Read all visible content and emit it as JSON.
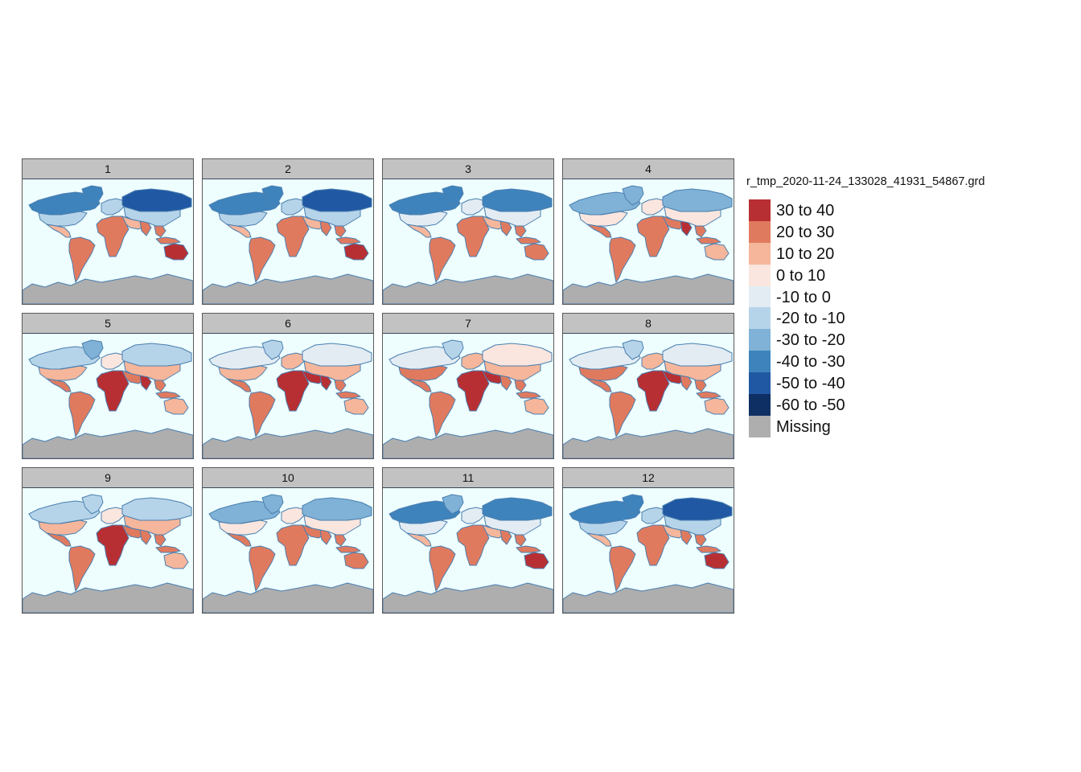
{
  "months": [
    "1",
    "2",
    "3",
    "4",
    "5",
    "6",
    "7",
    "8",
    "9",
    "10",
    "11",
    "12"
  ],
  "legend": {
    "title": "r_tmp_2020-11-24_133028_41931_54867.grd",
    "items": [
      {
        "label": "30 to 40",
        "color": "#b82f33"
      },
      {
        "label": "20 to 30",
        "color": "#e07a5f"
      },
      {
        "label": "10 to 20",
        "color": "#f5b69b"
      },
      {
        "label": "0 to 10",
        "color": "#fae6de"
      },
      {
        "label": "-10 to 0",
        "color": "#e3ecf3"
      },
      {
        "label": "-20 to -10",
        "color": "#b6d4e9"
      },
      {
        "label": "-30 to -20",
        "color": "#7fb2d6"
      },
      {
        "label": "-40 to -30",
        "color": "#3e83bc"
      },
      {
        "label": "-50 to -40",
        "color": "#2158a3"
      },
      {
        "label": "-60 to -50",
        "color": "#0e2f63"
      },
      {
        "label": "Missing",
        "color": "#aeaeae"
      }
    ]
  },
  "colors": {
    "ocean": "#eefdfe",
    "coastline": "#4a7fb0",
    "missing": "#aeaeae",
    "strip": "#c2c2c2"
  }
}
